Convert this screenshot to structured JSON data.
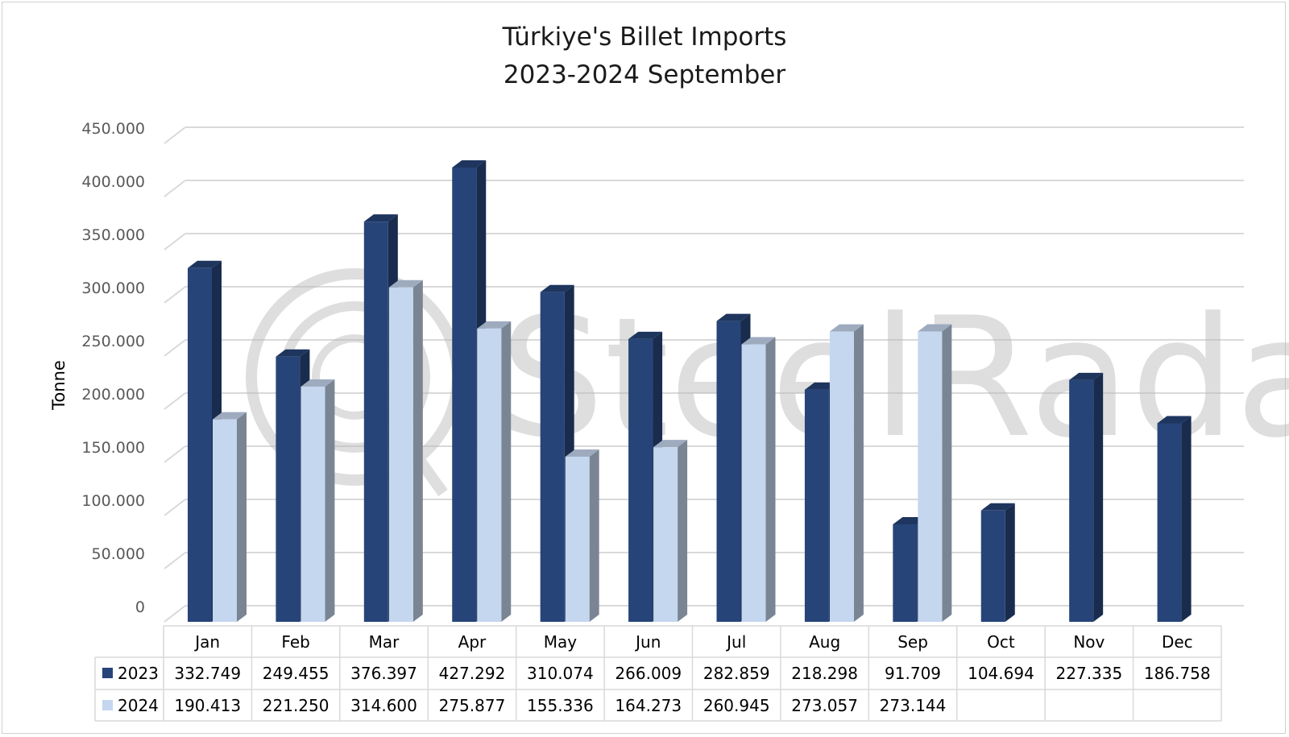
{
  "chart_data": {
    "type": "bar",
    "title": "Türkiye's Billet Imports",
    "subtitle": "2023-2024 September",
    "ylabel": "Tonne",
    "xlabel": "",
    "ylim": [
      0,
      450000
    ],
    "yticks": [
      0,
      50000,
      100000,
      150000,
      200000,
      250000,
      300000,
      350000,
      400000,
      450000
    ],
    "ytick_labels": [
      "0",
      "50.000",
      "100.000",
      "150.000",
      "200.000",
      "250.000",
      "300.000",
      "350.000",
      "400.000",
      "450.000"
    ],
    "categories": [
      "Jan",
      "Feb",
      "Mar",
      "Apr",
      "May",
      "Jun",
      "Jul",
      "Aug",
      "Sep",
      "Oct",
      "Nov",
      "Dec"
    ],
    "grid": true,
    "legend": "data-table",
    "series": [
      {
        "name": "2023",
        "color": "#264478",
        "values": [
          332749,
          249455,
          376397,
          427292,
          310074,
          266009,
          282859,
          218298,
          91709,
          104694,
          227335,
          186758
        ],
        "labels": [
          "332.749",
          "249.455",
          "376.397",
          "427.292",
          "310.074",
          "266.009",
          "282.859",
          "218.298",
          "91.709",
          "104.694",
          "227.335",
          "186.758"
        ]
      },
      {
        "name": "2024",
        "color": "#c5d6ef",
        "values": [
          190413,
          221250,
          314600,
          275877,
          155336,
          164273,
          260945,
          273057,
          273144,
          null,
          null,
          null
        ],
        "labels": [
          "190.413",
          "221.250",
          "314.600",
          "275.877",
          "155.336",
          "164.273",
          "260.945",
          "273.057",
          "273.144",
          "",
          "",
          ""
        ]
      }
    ]
  },
  "watermark": {
    "text": "SteelRadar",
    "icon": "radar-icon"
  }
}
